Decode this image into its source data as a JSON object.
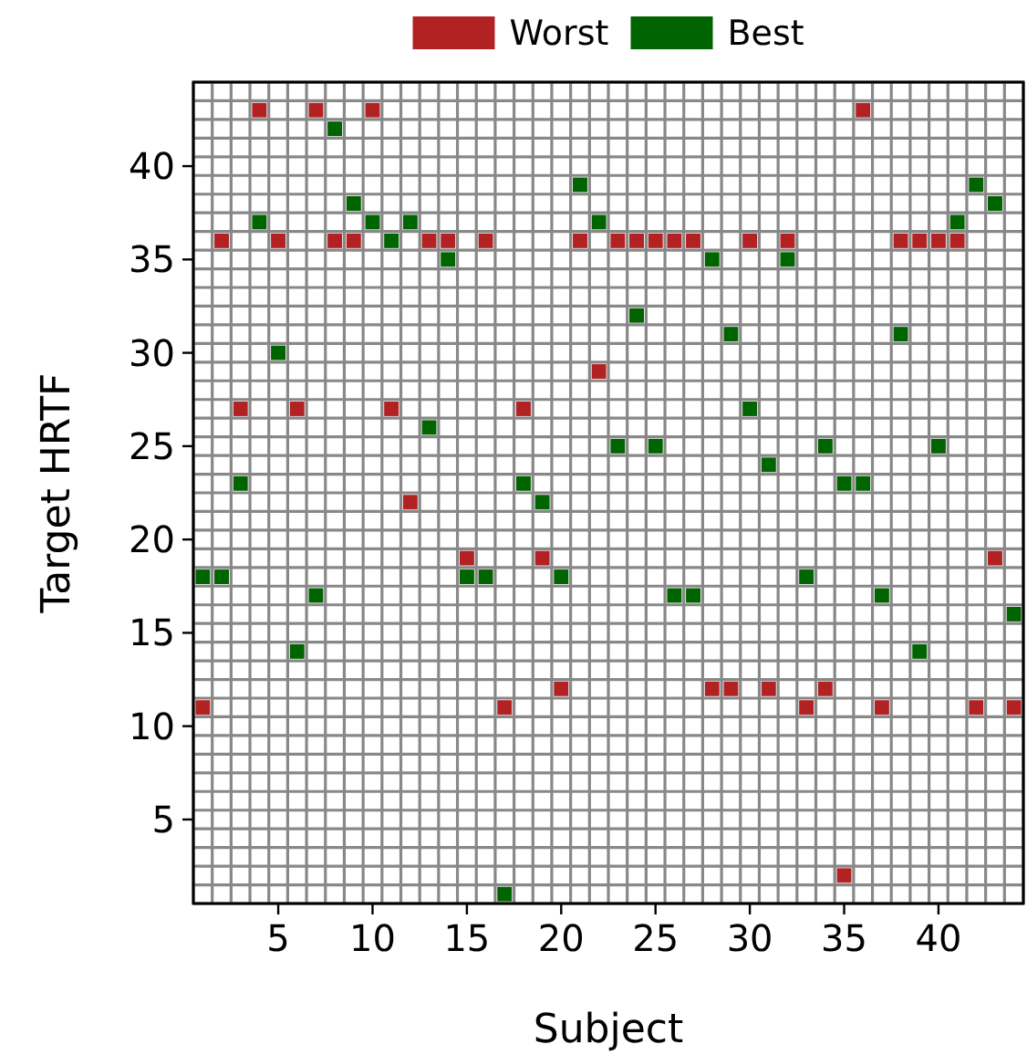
{
  "chart_data": {
    "type": "scatter",
    "xlabel": "Subject",
    "ylabel": "Target HRTF",
    "x": [
      1,
      2,
      3,
      4,
      5,
      6,
      7,
      8,
      9,
      10,
      11,
      12,
      13,
      14,
      15,
      16,
      17,
      18,
      19,
      20,
      21,
      22,
      23,
      24,
      25,
      26,
      27,
      28,
      29,
      30,
      31,
      32,
      33,
      34,
      35,
      36,
      37,
      38,
      39,
      40,
      41,
      42,
      43,
      44
    ],
    "series": [
      {
        "name": "Worst",
        "color": "#b22222",
        "values": [
          11,
          36,
          27,
          43,
          36,
          27,
          43,
          36,
          36,
          43,
          27,
          22,
          36,
          36,
          19,
          36,
          11,
          27,
          19,
          12,
          36,
          29,
          36,
          36,
          36,
          36,
          36,
          12,
          12,
          36,
          12,
          36,
          11,
          12,
          2,
          43,
          11,
          36,
          36,
          36,
          36,
          11,
          19,
          11
        ]
      },
      {
        "name": "Best",
        "color": "#006400",
        "values": [
          18,
          18,
          23,
          37,
          30,
          14,
          17,
          42,
          38,
          37,
          36,
          37,
          26,
          35,
          18,
          18,
          1,
          23,
          22,
          18,
          39,
          37,
          25,
          32,
          25,
          17,
          17,
          35,
          31,
          27,
          24,
          35,
          18,
          25,
          23,
          23,
          17,
          31,
          14,
          25,
          37,
          39,
          38,
          16
        ]
      }
    ],
    "xlim": [
      0.5,
      44.5
    ],
    "ylim": [
      0.5,
      44.5
    ],
    "xticks": [
      5,
      10,
      15,
      20,
      25,
      30,
      35,
      40
    ],
    "yticks": [
      5,
      10,
      15,
      20,
      25,
      30,
      35,
      40
    ],
    "grid": true,
    "marker": "square",
    "legend": "top"
  }
}
